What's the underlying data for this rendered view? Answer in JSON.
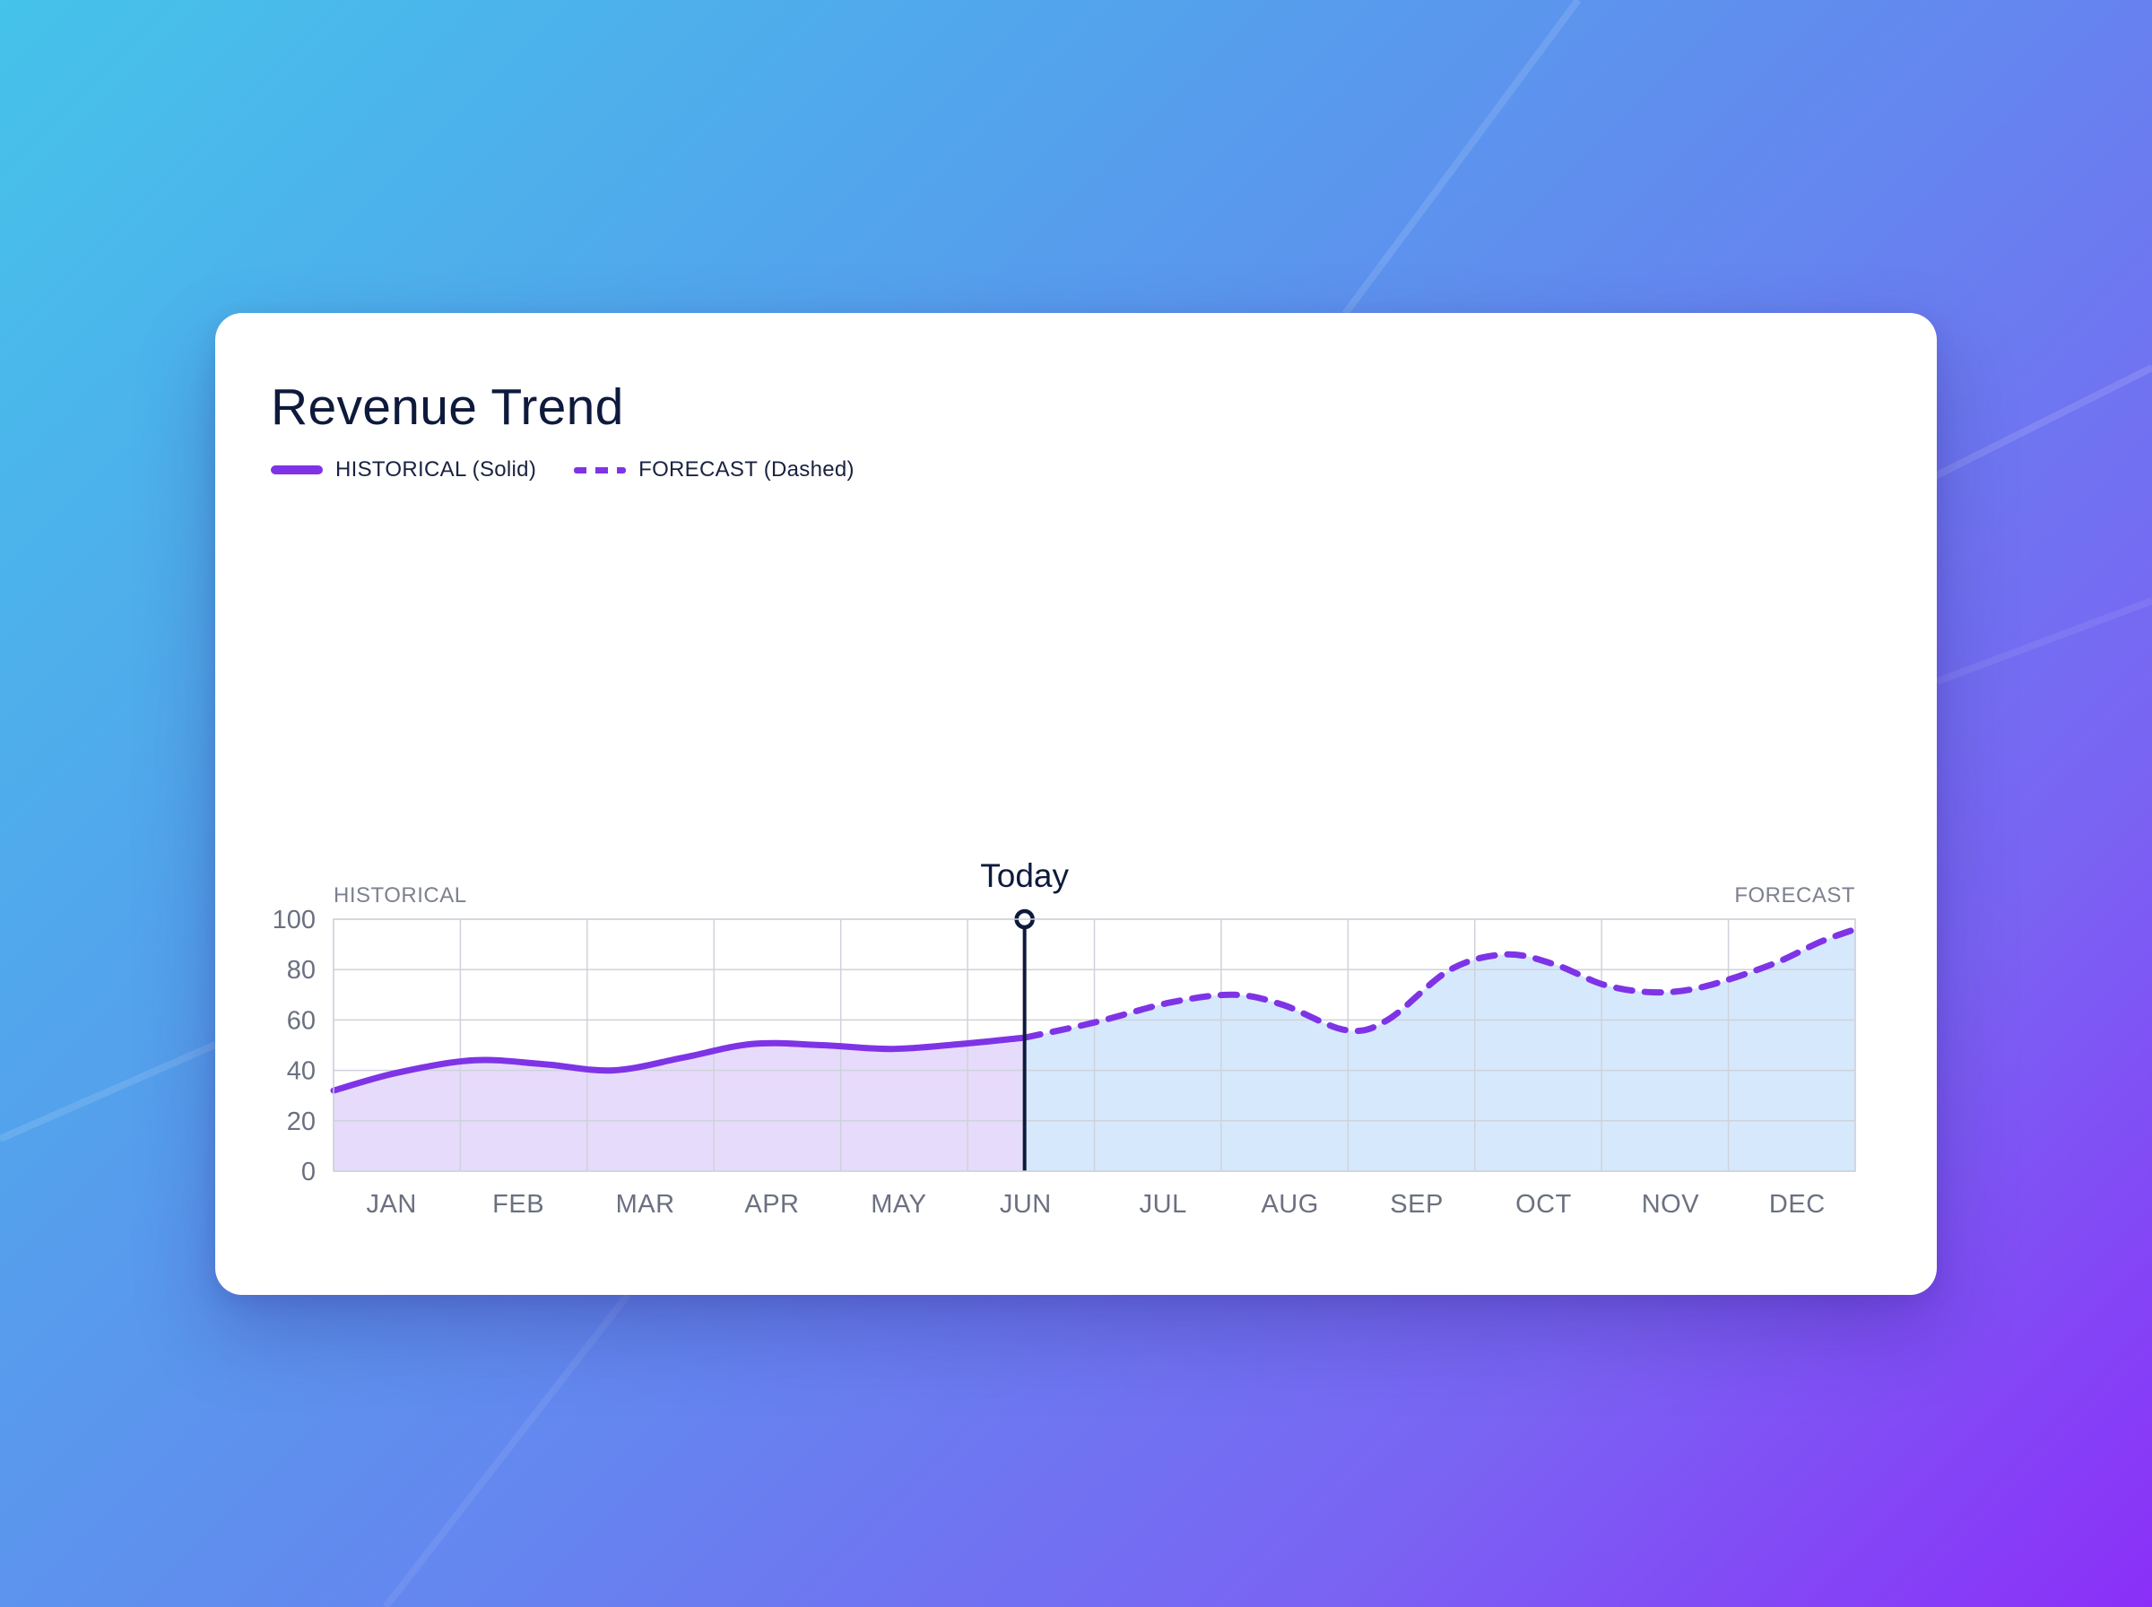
{
  "chart_data": {
    "type": "area",
    "title": "Revenue Trend",
    "xlabel": "",
    "ylabel": "",
    "categories": [
      "JAN",
      "FEB",
      "MAR",
      "APR",
      "MAY",
      "JUN",
      "JUL",
      "AUG",
      "SEP",
      "OCT",
      "NOV",
      "DEC"
    ],
    "ylim": [
      0,
      100
    ],
    "yticks": [
      0,
      20,
      40,
      60,
      80,
      100
    ],
    "grid": true,
    "legend_position": "top-left",
    "series": [
      {
        "name": "HISTORICAL (Solid)",
        "style": "solid",
        "color": "#7e34e6",
        "fill": "#e7dbfb",
        "points": [
          [
            0.0,
            32
          ],
          [
            0.45,
            39
          ],
          [
            1.0,
            44
          ],
          [
            1.5,
            42.5
          ],
          [
            2.0,
            40
          ],
          [
            2.5,
            45
          ],
          [
            3.0,
            50.5
          ],
          [
            3.5,
            50
          ],
          [
            4.0,
            48.5
          ],
          [
            4.5,
            50.5
          ],
          [
            4.95,
            53
          ]
        ]
      },
      {
        "name": "FORECAST (Dashed)",
        "style": "dashed",
        "color": "#7e34e6",
        "fill": "#d6e9fc",
        "points": [
          [
            4.95,
            53
          ],
          [
            5.45,
            59
          ],
          [
            6.0,
            67
          ],
          [
            6.45,
            70
          ],
          [
            6.8,
            66
          ],
          [
            7.25,
            56
          ],
          [
            7.55,
            60
          ],
          [
            8.0,
            80
          ],
          [
            8.4,
            86
          ],
          [
            8.75,
            82
          ],
          [
            9.1,
            74
          ],
          [
            9.45,
            71
          ],
          [
            9.8,
            73
          ],
          [
            10.3,
            82
          ],
          [
            10.65,
            91
          ],
          [
            10.9,
            96
          ]
        ]
      }
    ],
    "annotations": {
      "marker_label": "Today",
      "marker_x": 4.95,
      "left_region_label": "HISTORICAL",
      "right_region_label": "FORECAST"
    }
  },
  "colors": {
    "grid": "#cfd2dc",
    "tick_text": "#6b7080",
    "region_text": "#7d818f",
    "marker": "#0e1a3c"
  }
}
